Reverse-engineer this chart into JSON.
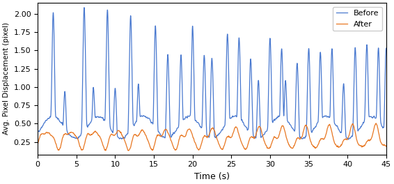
{
  "xlabel": "Time (s)",
  "ylabel": "Avg. Pixel Displacement (pixel)",
  "xlim": [
    0,
    45
  ],
  "ylim_bottom": 0.08,
  "ylim_top": 2.15,
  "yticks": [
    0.25,
    0.5,
    0.75,
    1.0,
    1.25,
    1.5,
    1.75,
    2.0
  ],
  "xticks": [
    0,
    5,
    10,
    15,
    20,
    25,
    30,
    35,
    40,
    45
  ],
  "legend_labels": [
    "Before",
    "After"
  ],
  "line_colors_before": "#4878cf",
  "line_colors_after": "#e87722",
  "figsize": [
    5.66,
    2.64
  ],
  "dpi": 100,
  "linewidth": 0.9
}
